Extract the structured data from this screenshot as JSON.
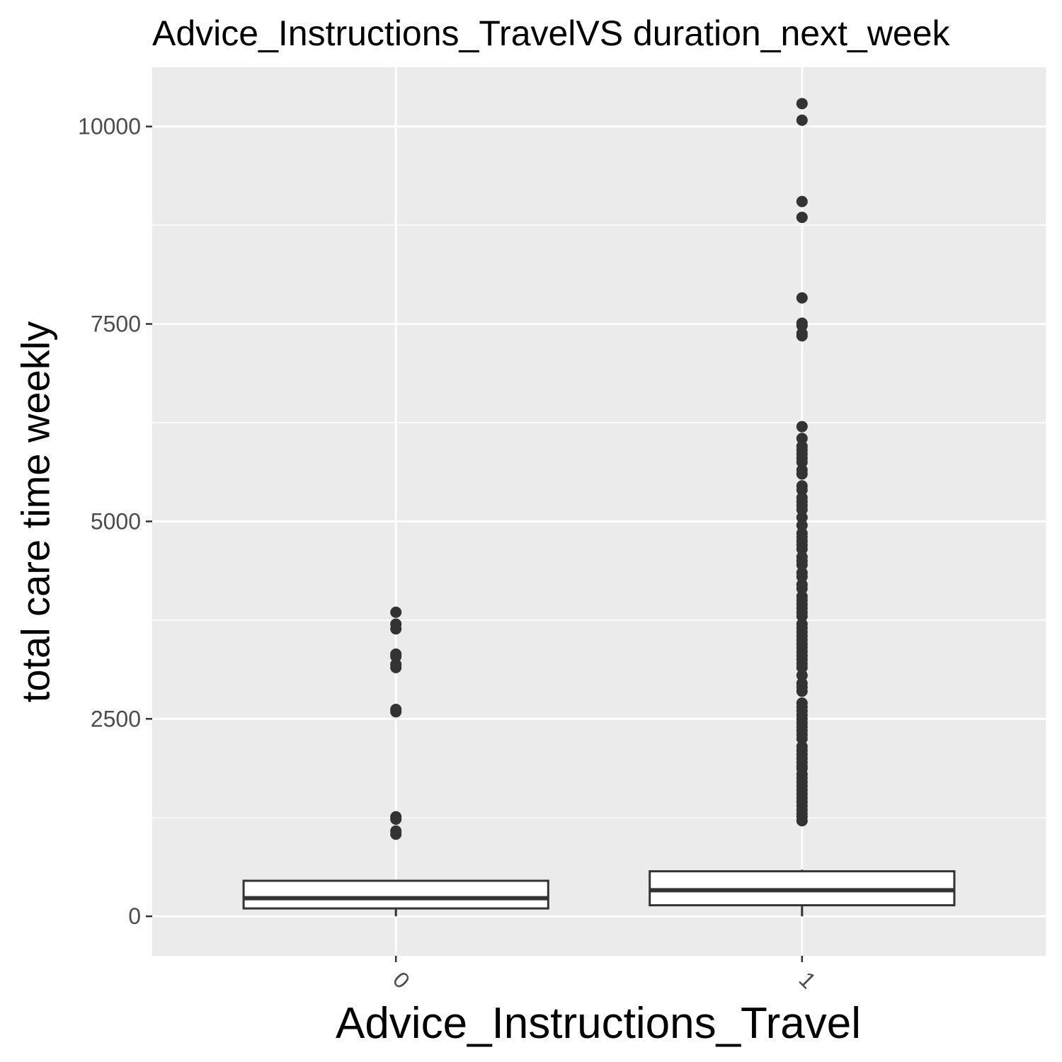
{
  "chart_data": {
    "type": "box",
    "title": "Advice_Instructions_TravelVS duration_next_week",
    "xlabel": "Advice_Instructions_Travel",
    "ylabel": "total care time weekly",
    "categories": [
      "0",
      "1"
    ],
    "ylim": [
      -500,
      10750
    ],
    "yticks": [
      0,
      2500,
      5000,
      7500,
      10000
    ],
    "grid": true,
    "boxes": [
      {
        "category": "0",
        "q1": 100,
        "median": 230,
        "q3": 450,
        "whisker_low": 0,
        "whisker_high": 460,
        "outliers": [
          1040,
          1080,
          1230,
          1260,
          2590,
          2620,
          3150,
          3190,
          3290,
          3320,
          3640,
          3700,
          3850
        ]
      },
      {
        "category": "1",
        "q1": 140,
        "median": 330,
        "q3": 570,
        "whisker_low": 0,
        "whisker_high": 590,
        "outliers": [
          1210,
          1260,
          1300,
          1350,
          1400,
          1450,
          1500,
          1550,
          1600,
          1650,
          1700,
          1750,
          1800,
          1870,
          1900,
          1950,
          2000,
          2050,
          2100,
          2150,
          2250,
          2300,
          2350,
          2400,
          2450,
          2500,
          2550,
          2600,
          2650,
          2700,
          2850,
          2900,
          2950,
          3050,
          3150,
          3200,
          3250,
          3300,
          3350,
          3400,
          3450,
          3500,
          3550,
          3600,
          3650,
          3700,
          3800,
          3850,
          3900,
          3950,
          4000,
          4050,
          4150,
          4200,
          4300,
          4350,
          4450,
          4500,
          4550,
          4650,
          4700,
          4750,
          4800,
          4850,
          4950,
          5050,
          5150,
          5200,
          5250,
          5300,
          5400,
          5450,
          5600,
          5650,
          5750,
          5800,
          5850,
          5900,
          5950,
          6050,
          6200,
          7350,
          7380,
          7480,
          7510,
          7830,
          8850,
          9050,
          10080,
          10290
        ]
      }
    ]
  }
}
